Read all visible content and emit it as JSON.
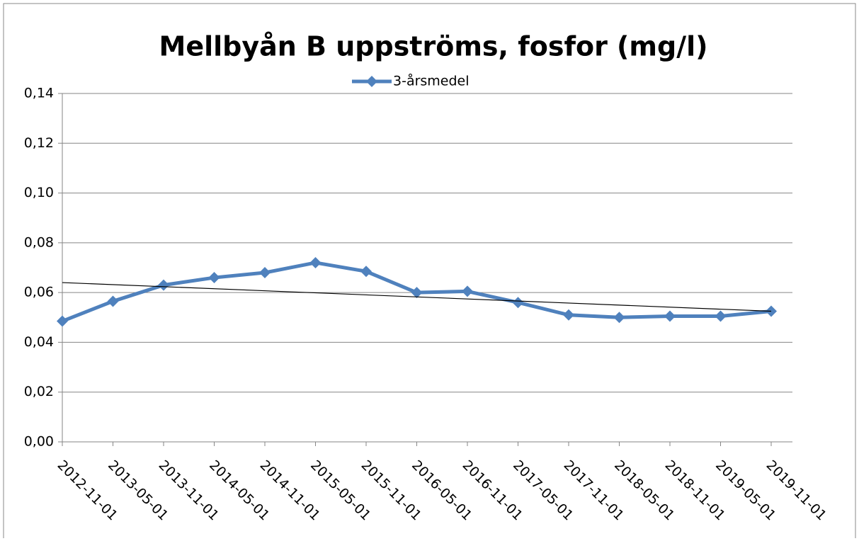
{
  "chart_data": {
    "type": "line",
    "title": "Mellbyån B uppströms, fosfor (mg/l)",
    "categories": [
      "2012-11-01",
      "2013-05-01",
      "2013-11-01",
      "2014-05-01",
      "2014-11-01",
      "2015-05-01",
      "2015-11-01",
      "2016-05-01",
      "2016-11-01",
      "2017-05-01",
      "2017-11-01",
      "2018-05-01",
      "2018-11-01",
      "2019-05-01",
      "2019-11-01"
    ],
    "series": [
      {
        "name": "3-årsmedel",
        "color": "#4f81bd",
        "values": [
          0.0485,
          0.0565,
          0.063,
          0.066,
          0.068,
          0.072,
          0.0685,
          0.06,
          0.0605,
          0.056,
          0.051,
          0.05,
          0.0505,
          0.0505,
          0.0525
        ]
      }
    ],
    "trend": {
      "start": 0.064,
      "end": 0.0525,
      "color": "#000000"
    },
    "ylim": [
      0,
      0.14
    ],
    "yticks": [
      {
        "value": 0,
        "label": "0,00"
      },
      {
        "value": 0.02,
        "label": "0,02"
      },
      {
        "value": 0.04,
        "label": "0,04"
      },
      {
        "value": 0.06,
        "label": "0,06"
      },
      {
        "value": 0.08,
        "label": "0,08"
      },
      {
        "value": 0.1,
        "label": "0,10"
      },
      {
        "value": 0.12,
        "label": "0,12"
      },
      {
        "value": 0.14,
        "label": "0,14"
      }
    ],
    "grid": true,
    "legend": "top"
  }
}
